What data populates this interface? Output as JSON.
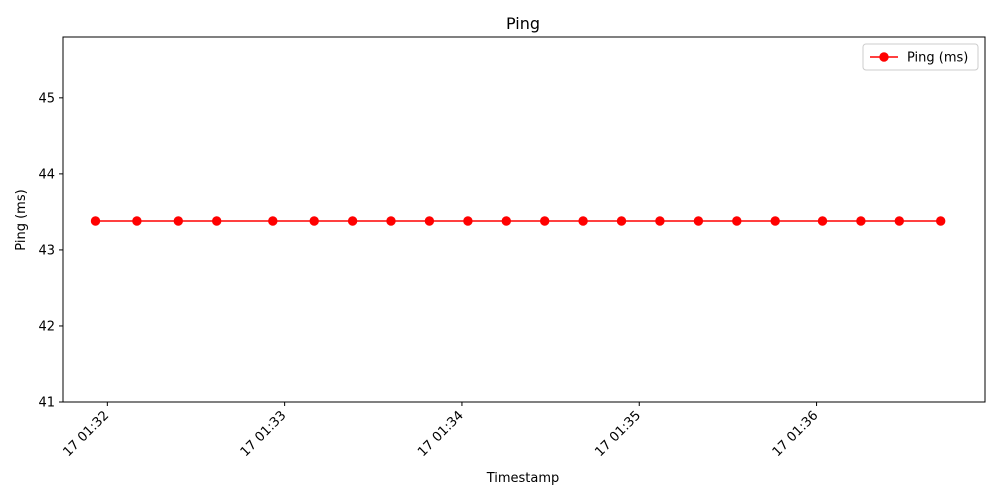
{
  "chart_data": {
    "type": "line",
    "title": "Ping",
    "xlabel": "Timestamp",
    "ylabel": "Ping (ms)",
    "ylim": [
      41,
      45.8
    ],
    "y_ticks": [
      41,
      42,
      43,
      44,
      45
    ],
    "x_range_minutes": [
      "01:31:45",
      "01:36:57"
    ],
    "x_ticks": [
      {
        "label": "17 01:32",
        "t": "01:32:00"
      },
      {
        "label": "17 01:33",
        "t": "01:33:00"
      },
      {
        "label": "17 01:34",
        "t": "01:34:00"
      },
      {
        "label": "17 01:35",
        "t": "01:35:00"
      },
      {
        "label": "17 01:36",
        "t": "01:36:00"
      }
    ],
    "grid": false,
    "legend_position": "top-right",
    "series": [
      {
        "name": "Ping (ms)",
        "color": "#ff0000",
        "marker": "circle",
        "points": [
          {
            "t": "01:31:56",
            "y": 43.38
          },
          {
            "t": "01:32:10",
            "y": 43.38
          },
          {
            "t": "01:32:24",
            "y": 43.38
          },
          {
            "t": "01:32:37",
            "y": 43.38
          },
          {
            "t": "01:32:56",
            "y": 43.38
          },
          {
            "t": "01:33:10",
            "y": 43.38
          },
          {
            "t": "01:33:23",
            "y": 43.38
          },
          {
            "t": "01:33:36",
            "y": 43.38
          },
          {
            "t": "01:33:49",
            "y": 43.38
          },
          {
            "t": "01:34:02",
            "y": 43.38
          },
          {
            "t": "01:34:15",
            "y": 43.38
          },
          {
            "t": "01:34:28",
            "y": 43.38
          },
          {
            "t": "01:34:41",
            "y": 43.38
          },
          {
            "t": "01:34:54",
            "y": 43.38
          },
          {
            "t": "01:35:07",
            "y": 43.38
          },
          {
            "t": "01:35:20",
            "y": 43.38
          },
          {
            "t": "01:35:33",
            "y": 43.38
          },
          {
            "t": "01:35:46",
            "y": 43.38
          },
          {
            "t": "01:36:02",
            "y": 43.38
          },
          {
            "t": "01:36:15",
            "y": 43.38
          },
          {
            "t": "01:36:28",
            "y": 43.38
          },
          {
            "t": "01:36:42",
            "y": 43.38
          }
        ]
      }
    ]
  }
}
